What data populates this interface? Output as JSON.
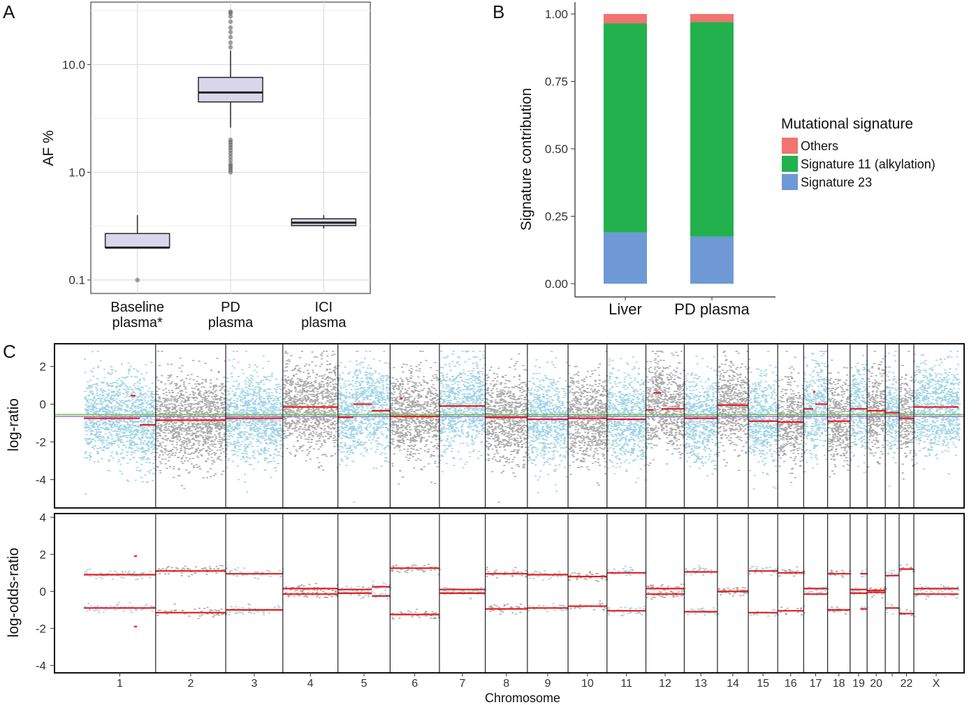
{
  "panel_labels": [
    "A",
    "B",
    "C"
  ],
  "colors": {
    "box_fill": "#d9d6ec",
    "others": "#f07470",
    "sig11": "#22b14c",
    "sig23": "#6e99d6",
    "points_light": "#9fd3e6",
    "points_gray": "#a9a9a9",
    "segment": "#e81c1c",
    "ref_green": "#73c15a",
    "ref_purple": "#9a78c8"
  },
  "chart_data": [
    {
      "panel": "A",
      "type": "box",
      "ylabel": "AF %",
      "yscale": "log10",
      "ylim": [
        0.075,
        38
      ],
      "yticks": [
        0.1,
        1.0,
        10.0
      ],
      "ytick_labels": [
        "0.1",
        "1.0",
        "10.0"
      ],
      "grid": true,
      "categories": [
        "Baseline\nplasma*",
        "PD\nplasma",
        "ICI\nplasma"
      ],
      "category_lines": [
        [
          "Baseline",
          "plasma*"
        ],
        [
          "PD",
          "plasma"
        ],
        [
          "ICI",
          "plasma"
        ]
      ],
      "boxes": [
        {
          "q1": 0.2,
          "median": 0.2,
          "q3": 0.27,
          "whisker_low": 0.2,
          "whisker_high": 0.4,
          "outliers": [
            0.1
          ],
          "fill": "#d9d6ec"
        },
        {
          "q1": 4.5,
          "median": 5.5,
          "q3": 7.6,
          "whisker_low": 2.6,
          "whisker_high": 13.5,
          "outliers": [
            1.0,
            1.05,
            1.1,
            1.15,
            1.2,
            1.3,
            1.4,
            1.5,
            1.6,
            1.7,
            1.8,
            1.9,
            2.0,
            14.5,
            16,
            18,
            20,
            22,
            25,
            28,
            30,
            31
          ],
          "fill": "#d9d6ec"
        },
        {
          "q1": 0.32,
          "median": 0.34,
          "q3": 0.37,
          "whisker_low": 0.3,
          "whisker_high": 0.4,
          "outliers": [],
          "fill": "#d9d6ec"
        }
      ]
    },
    {
      "panel": "B",
      "type": "stacked_bar",
      "ylabel": "Signature contribution",
      "ylim": [
        0,
        1.0
      ],
      "yticks": [
        0.0,
        0.25,
        0.5,
        0.75,
        1.0
      ],
      "ytick_labels": [
        "0.00",
        "0.25",
        "0.50",
        "0.75",
        "1.00"
      ],
      "categories": [
        "Liver",
        "PD plasma"
      ],
      "legend_title": "Mutational signature",
      "legend_position": "right",
      "series": [
        {
          "name": "Signature 23",
          "color": "#6e99d6",
          "values": [
            0.19,
            0.175
          ]
        },
        {
          "name": "Signature 11 (alkylation)",
          "color": "#22b14c",
          "values": [
            0.775,
            0.795
          ]
        },
        {
          "name": "Others",
          "color": "#f07470",
          "values": [
            0.035,
            0.03
          ]
        }
      ],
      "legend_order": [
        "Others",
        "Signature 11 (alkylation)",
        "Signature 23"
      ]
    },
    {
      "panel": "C",
      "type": "genome_scatter",
      "xlabel": "Chromosome",
      "chromosomes": [
        "1",
        "2",
        "3",
        "4",
        "5",
        "6",
        "7",
        "8",
        "9",
        "10",
        "11",
        "12",
        "13",
        "14",
        "15",
        "16",
        "17",
        "18",
        "19",
        "20",
        "21",
        "22",
        "X"
      ],
      "chromosome_labels": [
        "1",
        "2",
        "3",
        "4",
        "5",
        "6",
        "7",
        "8",
        "9",
        "10",
        "11",
        "12",
        "13",
        "14",
        "15",
        "16",
        "17",
        "18",
        "19",
        "20",
        "",
        "22",
        "X"
      ],
      "chromosome_widths": [
        249,
        243,
        198,
        191,
        181,
        171,
        159,
        146,
        141,
        135,
        135,
        133,
        115,
        107,
        102,
        90,
        83,
        78,
        59,
        63,
        48,
        51,
        155
      ],
      "top": {
        "ylabel": "log-ratio",
        "ylim": [
          -5.5,
          3.2
        ],
        "yticks": [
          -4,
          -2,
          0,
          2
        ],
        "ytick_labels": [
          "-4",
          "-2",
          "0",
          "2"
        ],
        "reference_lines": [
          -0.55,
          -0.65
        ],
        "segments": [
          {
            "chr": 1,
            "from": 0.0,
            "to": 0.78,
            "y": -0.75
          },
          {
            "chr": 1,
            "from": 0.78,
            "to": 1.0,
            "y": -1.1
          },
          {
            "chr": 1,
            "from": 0.65,
            "to": 0.72,
            "y": 0.45
          },
          {
            "chr": 2,
            "from": 0.0,
            "to": 1.0,
            "y": -0.85
          },
          {
            "chr": 3,
            "from": 0.0,
            "to": 1.0,
            "y": -0.75
          },
          {
            "chr": 4,
            "from": 0.0,
            "to": 1.0,
            "y": -0.15
          },
          {
            "chr": 5,
            "from": 0.0,
            "to": 0.3,
            "y": -0.7
          },
          {
            "chr": 5,
            "from": 0.3,
            "to": 0.65,
            "y": 0.0
          },
          {
            "chr": 5,
            "from": 0.65,
            "to": 1.0,
            "y": -0.35
          },
          {
            "chr": 6,
            "from": 0.0,
            "to": 1.0,
            "y": -0.65
          },
          {
            "chr": 6,
            "from": 0.2,
            "to": 0.25,
            "y": 0.3
          },
          {
            "chr": 7,
            "from": 0.0,
            "to": 1.0,
            "y": -0.1
          },
          {
            "chr": 8,
            "from": 0.0,
            "to": 1.0,
            "y": -0.7
          },
          {
            "chr": 9,
            "from": 0.0,
            "to": 1.0,
            "y": -0.8
          },
          {
            "chr": 10,
            "from": 0.0,
            "to": 1.0,
            "y": -0.75
          },
          {
            "chr": 11,
            "from": 0.0,
            "to": 1.0,
            "y": -0.8
          },
          {
            "chr": 12,
            "from": 0.0,
            "to": 0.2,
            "y": -0.3
          },
          {
            "chr": 12,
            "from": 0.2,
            "to": 0.4,
            "y": 0.6
          },
          {
            "chr": 12,
            "from": 0.4,
            "to": 1.0,
            "y": -0.25
          },
          {
            "chr": 13,
            "from": 0.0,
            "to": 1.0,
            "y": -0.75
          },
          {
            "chr": 14,
            "from": 0.0,
            "to": 1.0,
            "y": -0.05
          },
          {
            "chr": 15,
            "from": 0.0,
            "to": 1.0,
            "y": -0.9
          },
          {
            "chr": 16,
            "from": 0.0,
            "to": 1.0,
            "y": -0.95
          },
          {
            "chr": 17,
            "from": 0.0,
            "to": 0.4,
            "y": -0.25
          },
          {
            "chr": 17,
            "from": 0.4,
            "to": 0.48,
            "y": 0.65
          },
          {
            "chr": 17,
            "from": 0.48,
            "to": 1.0,
            "y": 0.0
          },
          {
            "chr": 18,
            "from": 0.0,
            "to": 1.0,
            "y": -0.9
          },
          {
            "chr": 19,
            "from": 0.0,
            "to": 1.0,
            "y": -0.25
          },
          {
            "chr": 20,
            "from": 0.0,
            "to": 1.0,
            "y": -0.35
          },
          {
            "chr": 21,
            "from": 0.0,
            "to": 1.0,
            "y": -0.45
          },
          {
            "chr": 22,
            "from": 0.0,
            "to": 1.0,
            "y": -0.75
          },
          {
            "chr": 23,
            "from": 0.0,
            "to": 1.0,
            "y": -0.15
          }
        ]
      },
      "bottom": {
        "ylabel": "log-odds-ratio",
        "ylim": [
          -4.4,
          4.2
        ],
        "yticks": [
          -4,
          -2,
          0,
          2,
          4
        ],
        "ytick_labels": [
          "-4",
          "-2",
          "0",
          "2",
          "4"
        ],
        "segments": [
          {
            "chr": 1,
            "from": 0.0,
            "to": 0.78,
            "y": 0.9
          },
          {
            "chr": 1,
            "from": 0.0,
            "to": 0.78,
            "y": -0.9
          },
          {
            "chr": 1,
            "from": 0.78,
            "to": 1.0,
            "y": 0.9
          },
          {
            "chr": 1,
            "from": 0.78,
            "to": 1.0,
            "y": -0.9
          },
          {
            "chr": 1,
            "from": 0.7,
            "to": 0.74,
            "y": 1.9
          },
          {
            "chr": 1,
            "from": 0.7,
            "to": 0.74,
            "y": -1.9
          },
          {
            "chr": 2,
            "from": 0.0,
            "to": 1.0,
            "y": 1.1
          },
          {
            "chr": 2,
            "from": 0.0,
            "to": 1.0,
            "y": -1.15
          },
          {
            "chr": 3,
            "from": 0.0,
            "to": 1.0,
            "y": 0.95
          },
          {
            "chr": 3,
            "from": 0.0,
            "to": 1.0,
            "y": -1.0
          },
          {
            "chr": 4,
            "from": 0.0,
            "to": 1.0,
            "y": 0.15
          },
          {
            "chr": 4,
            "from": 0.0,
            "to": 1.0,
            "y": -0.15
          },
          {
            "chr": 5,
            "from": 0.0,
            "to": 0.65,
            "y": 0.1
          },
          {
            "chr": 5,
            "from": 0.0,
            "to": 0.65,
            "y": -0.1
          },
          {
            "chr": 5,
            "from": 0.65,
            "to": 1.0,
            "y": 0.25
          },
          {
            "chr": 5,
            "from": 0.65,
            "to": 1.0,
            "y": -0.25
          },
          {
            "chr": 6,
            "from": 0.0,
            "to": 1.0,
            "y": 1.25
          },
          {
            "chr": 6,
            "from": 0.0,
            "to": 1.0,
            "y": -1.25
          },
          {
            "chr": 7,
            "from": 0.0,
            "to": 1.0,
            "y": 0.1
          },
          {
            "chr": 7,
            "from": 0.0,
            "to": 1.0,
            "y": -0.1
          },
          {
            "chr": 8,
            "from": 0.0,
            "to": 1.0,
            "y": 0.95
          },
          {
            "chr": 8,
            "from": 0.0,
            "to": 1.0,
            "y": -0.95
          },
          {
            "chr": 9,
            "from": 0.0,
            "to": 1.0,
            "y": 0.9
          },
          {
            "chr": 9,
            "from": 0.0,
            "to": 1.0,
            "y": -0.9
          },
          {
            "chr": 10,
            "from": 0.0,
            "to": 1.0,
            "y": 0.8
          },
          {
            "chr": 10,
            "from": 0.0,
            "to": 1.0,
            "y": -0.8
          },
          {
            "chr": 11,
            "from": 0.0,
            "to": 1.0,
            "y": 1.0
          },
          {
            "chr": 11,
            "from": 0.0,
            "to": 1.0,
            "y": -1.05
          },
          {
            "chr": 12,
            "from": 0.0,
            "to": 1.0,
            "y": 0.15
          },
          {
            "chr": 12,
            "from": 0.0,
            "to": 1.0,
            "y": -0.15
          },
          {
            "chr": 13,
            "from": 0.0,
            "to": 1.0,
            "y": 1.05
          },
          {
            "chr": 13,
            "from": 0.0,
            "to": 1.0,
            "y": -1.1
          },
          {
            "chr": 14,
            "from": 0.0,
            "to": 1.0,
            "y": 0.0
          },
          {
            "chr": 15,
            "from": 0.0,
            "to": 1.0,
            "y": 1.1
          },
          {
            "chr": 15,
            "from": 0.0,
            "to": 1.0,
            "y": -1.15
          },
          {
            "chr": 16,
            "from": 0.0,
            "to": 1.0,
            "y": 1.0
          },
          {
            "chr": 16,
            "from": 0.0,
            "to": 1.0,
            "y": -1.05
          },
          {
            "chr": 17,
            "from": 0.0,
            "to": 1.0,
            "y": 0.15
          },
          {
            "chr": 17,
            "from": 0.0,
            "to": 1.0,
            "y": -0.15
          },
          {
            "chr": 18,
            "from": 0.0,
            "to": 1.0,
            "y": 0.95
          },
          {
            "chr": 18,
            "from": 0.0,
            "to": 1.0,
            "y": -1.0
          },
          {
            "chr": 19,
            "from": 0.0,
            "to": 1.0,
            "y": 0.1
          },
          {
            "chr": 19,
            "from": 0.0,
            "to": 1.0,
            "y": -0.1
          },
          {
            "chr": 19,
            "from": 0.6,
            "to": 1.0,
            "y": 0.95
          },
          {
            "chr": 19,
            "from": 0.6,
            "to": 1.0,
            "y": -0.95
          },
          {
            "chr": 20,
            "from": 0.0,
            "to": 1.0,
            "y": 0.05
          },
          {
            "chr": 20,
            "from": 0.0,
            "to": 1.0,
            "y": -0.05
          },
          {
            "chr": 21,
            "from": 0.0,
            "to": 1.0,
            "y": 0.85
          },
          {
            "chr": 21,
            "from": 0.0,
            "to": 1.0,
            "y": -0.9
          },
          {
            "chr": 22,
            "from": 0.0,
            "to": 1.0,
            "y": 1.2
          },
          {
            "chr": 22,
            "from": 0.0,
            "to": 1.0,
            "y": -1.2
          },
          {
            "chr": 23,
            "from": 0.0,
            "to": 1.0,
            "y": 0.15
          },
          {
            "chr": 23,
            "from": 0.0,
            "to": 1.0,
            "y": -0.15
          }
        ]
      }
    }
  ]
}
